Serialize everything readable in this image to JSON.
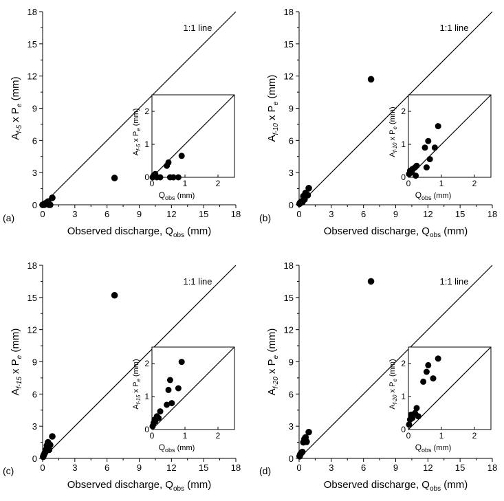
{
  "colors": {
    "axis": "#000000",
    "marker": "#000000",
    "background": "#ffffff"
  },
  "chart_data": [
    {
      "panel_label": "(a)",
      "type": "scatter",
      "xlabel": "Observed discharge, Q",
      "xlabel_sub": "obs",
      "xlabel_unit": " (mm)",
      "ylabel_main": "A",
      "ylabel_sub": "f-5",
      "ylabel_mid": " x P",
      "ylabel_sub2": "e",
      "ylabel_unit": " (mm)",
      "xlim": [
        0,
        18
      ],
      "ylim": [
        0,
        18
      ],
      "xticks": [
        "0",
        "3",
        "6",
        "9",
        "12",
        "15",
        "18"
      ],
      "yticks": [
        "0",
        "3",
        "6",
        "9",
        "12",
        "15",
        "18"
      ],
      "line_label": "1:1 line",
      "points": [
        [
          0,
          0
        ],
        [
          0.1,
          0.05
        ],
        [
          0.2,
          0.1
        ],
        [
          0.3,
          0.15
        ],
        [
          0.15,
          0
        ],
        [
          0.5,
          0.3
        ],
        [
          0.6,
          0
        ],
        [
          0.7,
          0
        ],
        [
          0.9,
          0.65
        ],
        [
          6.7,
          2.5
        ]
      ],
      "inset": {
        "xlim": [
          0,
          2.5
        ],
        "ylim": [
          0,
          2.5
        ],
        "xticks": [
          "0",
          "1",
          "2"
        ],
        "yticks": [
          "0",
          "1",
          "2"
        ],
        "xlabel": "Q",
        "xlabel_sub": "obs",
        "xlabel_unit": " (mm)",
        "ylabel_main": "A",
        "ylabel_sub": "f-5",
        "ylabel_mid": " x P",
        "ylabel_sub2": "e",
        "ylabel_unit": " (mm)",
        "points": [
          [
            0.02,
            0
          ],
          [
            0.05,
            0.05
          ],
          [
            0.1,
            0.1
          ],
          [
            0.15,
            0
          ],
          [
            0.25,
            0
          ],
          [
            0.45,
            0.35
          ],
          [
            0.5,
            0.45
          ],
          [
            0.55,
            0
          ],
          [
            0.65,
            0
          ],
          [
            0.8,
            0
          ],
          [
            0.9,
            0.65
          ]
        ]
      }
    },
    {
      "panel_label": "(b)",
      "type": "scatter",
      "xlabel": "Observed discharge, Q",
      "xlabel_sub": "obs",
      "xlabel_unit": " (mm)",
      "ylabel_main": "A",
      "ylabel_sub": "f-10",
      "ylabel_mid": " x P",
      "ylabel_sub2": "e",
      "ylabel_unit": " (mm)",
      "xlim": [
        0,
        18
      ],
      "ylim": [
        0,
        18
      ],
      "xticks": [
        "0",
        "3",
        "6",
        "9",
        "12",
        "15",
        "18"
      ],
      "yticks": [
        "0",
        "3",
        "6",
        "9",
        "12",
        "15",
        "18"
      ],
      "line_label": "1:1 line",
      "points": [
        [
          0.05,
          0.1
        ],
        [
          0.1,
          0.2
        ],
        [
          0.2,
          0.3
        ],
        [
          0.3,
          0.25
        ],
        [
          0.4,
          0.8
        ],
        [
          0.5,
          0.5
        ],
        [
          0.6,
          1.1
        ],
        [
          0.8,
          0.9
        ],
        [
          0.9,
          1.55
        ],
        [
          6.7,
          11.7
        ]
      ],
      "inset": {
        "xlim": [
          0,
          2.5
        ],
        "ylim": [
          0,
          2.5
        ],
        "xticks": [
          "0",
          "1",
          "2"
        ],
        "yticks": [
          "0",
          "1",
          "2"
        ],
        "xlabel": "Q",
        "xlabel_sub": "obs",
        "xlabel_unit": " (mm)",
        "ylabel_main": "A",
        "ylabel_sub": "f-10",
        "ylabel_mid": " x P",
        "ylabel_sub2": "e",
        "ylabel_unit": " (mm)",
        "points": [
          [
            0.02,
            0.1
          ],
          [
            0.05,
            0.2
          ],
          [
            0.1,
            0.15
          ],
          [
            0.12,
            0.25
          ],
          [
            0.2,
            0.3
          ],
          [
            0.22,
            0.05
          ],
          [
            0.25,
            0.35
          ],
          [
            0.5,
            0.9
          ],
          [
            0.55,
            0.3
          ],
          [
            0.6,
            1.1
          ],
          [
            0.65,
            0.55
          ],
          [
            0.8,
            0.9
          ],
          [
            0.9,
            1.55
          ]
        ]
      }
    },
    {
      "panel_label": "(c)",
      "type": "scatter",
      "xlabel": "Observed discharge, Q",
      "xlabel_sub": "obs",
      "xlabel_unit": " (mm)",
      "ylabel_main": "A",
      "ylabel_sub": "f-15",
      "ylabel_mid": " x P",
      "ylabel_sub2": "e",
      "ylabel_unit": " (mm)",
      "xlim": [
        0,
        18
      ],
      "ylim": [
        0,
        18
      ],
      "xticks": [
        "0",
        "3",
        "6",
        "9",
        "12",
        "15",
        "18"
      ],
      "yticks": [
        "0",
        "3",
        "6",
        "9",
        "12",
        "15",
        "18"
      ],
      "line_label": "1:1 line",
      "points": [
        [
          0.05,
          0.15
        ],
        [
          0.1,
          0.3
        ],
        [
          0.2,
          0.5
        ],
        [
          0.3,
          0.8
        ],
        [
          0.4,
          1.2
        ],
        [
          0.5,
          1.5
        ],
        [
          0.6,
          0.8
        ],
        [
          0.7,
          1.25
        ],
        [
          0.9,
          2.05
        ],
        [
          6.7,
          15.2
        ]
      ],
      "inset": {
        "xlim": [
          0,
          2.5
        ],
        "ylim": [
          0,
          2.5
        ],
        "xticks": [
          "0",
          "1",
          "2"
        ],
        "yticks": [
          "0",
          "1",
          "2"
        ],
        "xlabel": "Q",
        "xlabel_sub": "obs",
        "xlabel_unit": " (mm)",
        "ylabel_main": "A",
        "ylabel_sub": "f-15",
        "ylabel_mid": " x P",
        "ylabel_sub2": "e",
        "ylabel_unit": " (mm)",
        "points": [
          [
            0.02,
            0.1
          ],
          [
            0.05,
            0.2
          ],
          [
            0.08,
            0.3
          ],
          [
            0.1,
            0.25
          ],
          [
            0.15,
            0.4
          ],
          [
            0.2,
            0.35
          ],
          [
            0.25,
            0.55
          ],
          [
            0.45,
            0.75
          ],
          [
            0.5,
            1.2
          ],
          [
            0.55,
            1.5
          ],
          [
            0.6,
            0.8
          ],
          [
            0.8,
            1.25
          ],
          [
            0.9,
            2.05
          ]
        ]
      }
    },
    {
      "panel_label": "(d)",
      "type": "scatter",
      "xlabel": "Observed discharge, Q",
      "xlabel_sub": "obs",
      "xlabel_unit": " (mm)",
      "ylabel_main": "A",
      "ylabel_sub": "f-20",
      "ylabel_mid": " x P",
      "ylabel_sub2": "e",
      "ylabel_unit": " (mm)",
      "xlim": [
        0,
        18
      ],
      "ylim": [
        0,
        18
      ],
      "xticks": [
        "0",
        "3",
        "6",
        "9",
        "12",
        "15",
        "18"
      ],
      "yticks": [
        "0",
        "3",
        "6",
        "9",
        "12",
        "15",
        "18"
      ],
      "line_label": "1:1 line",
      "points": [
        [
          0.05,
          0.2
        ],
        [
          0.1,
          0.35
        ],
        [
          0.2,
          0.5
        ],
        [
          0.3,
          0.6
        ],
        [
          0.4,
          1.5
        ],
        [
          0.5,
          1.8
        ],
        [
          0.6,
          1.95
        ],
        [
          0.7,
          1.55
        ],
        [
          0.9,
          2.45
        ],
        [
          6.7,
          16.5
        ]
      ],
      "inset": {
        "xlim": [
          0,
          2.5
        ],
        "ylim": [
          0,
          2.5
        ],
        "xticks": [
          "0",
          "1",
          "2"
        ],
        "yticks": [
          "0",
          "1",
          "2"
        ],
        "xlabel": "Q",
        "xlabel_sub": "obs",
        "xlabel_unit": " (mm)",
        "ylabel_main": "A",
        "ylabel_sub": "f-20",
        "ylabel_mid": " x P",
        "ylabel_sub2": "e",
        "ylabel_unit": " (mm)",
        "points": [
          [
            0.02,
            0.15
          ],
          [
            0.05,
            0.3
          ],
          [
            0.08,
            0.45
          ],
          [
            0.12,
            0.35
          ],
          [
            0.2,
            0.5
          ],
          [
            0.25,
            0.65
          ],
          [
            0.3,
            0.4
          ],
          [
            0.45,
            1.45
          ],
          [
            0.55,
            1.75
          ],
          [
            0.6,
            1.95
          ],
          [
            0.75,
            1.55
          ],
          [
            0.9,
            2.15
          ]
        ]
      }
    }
  ]
}
